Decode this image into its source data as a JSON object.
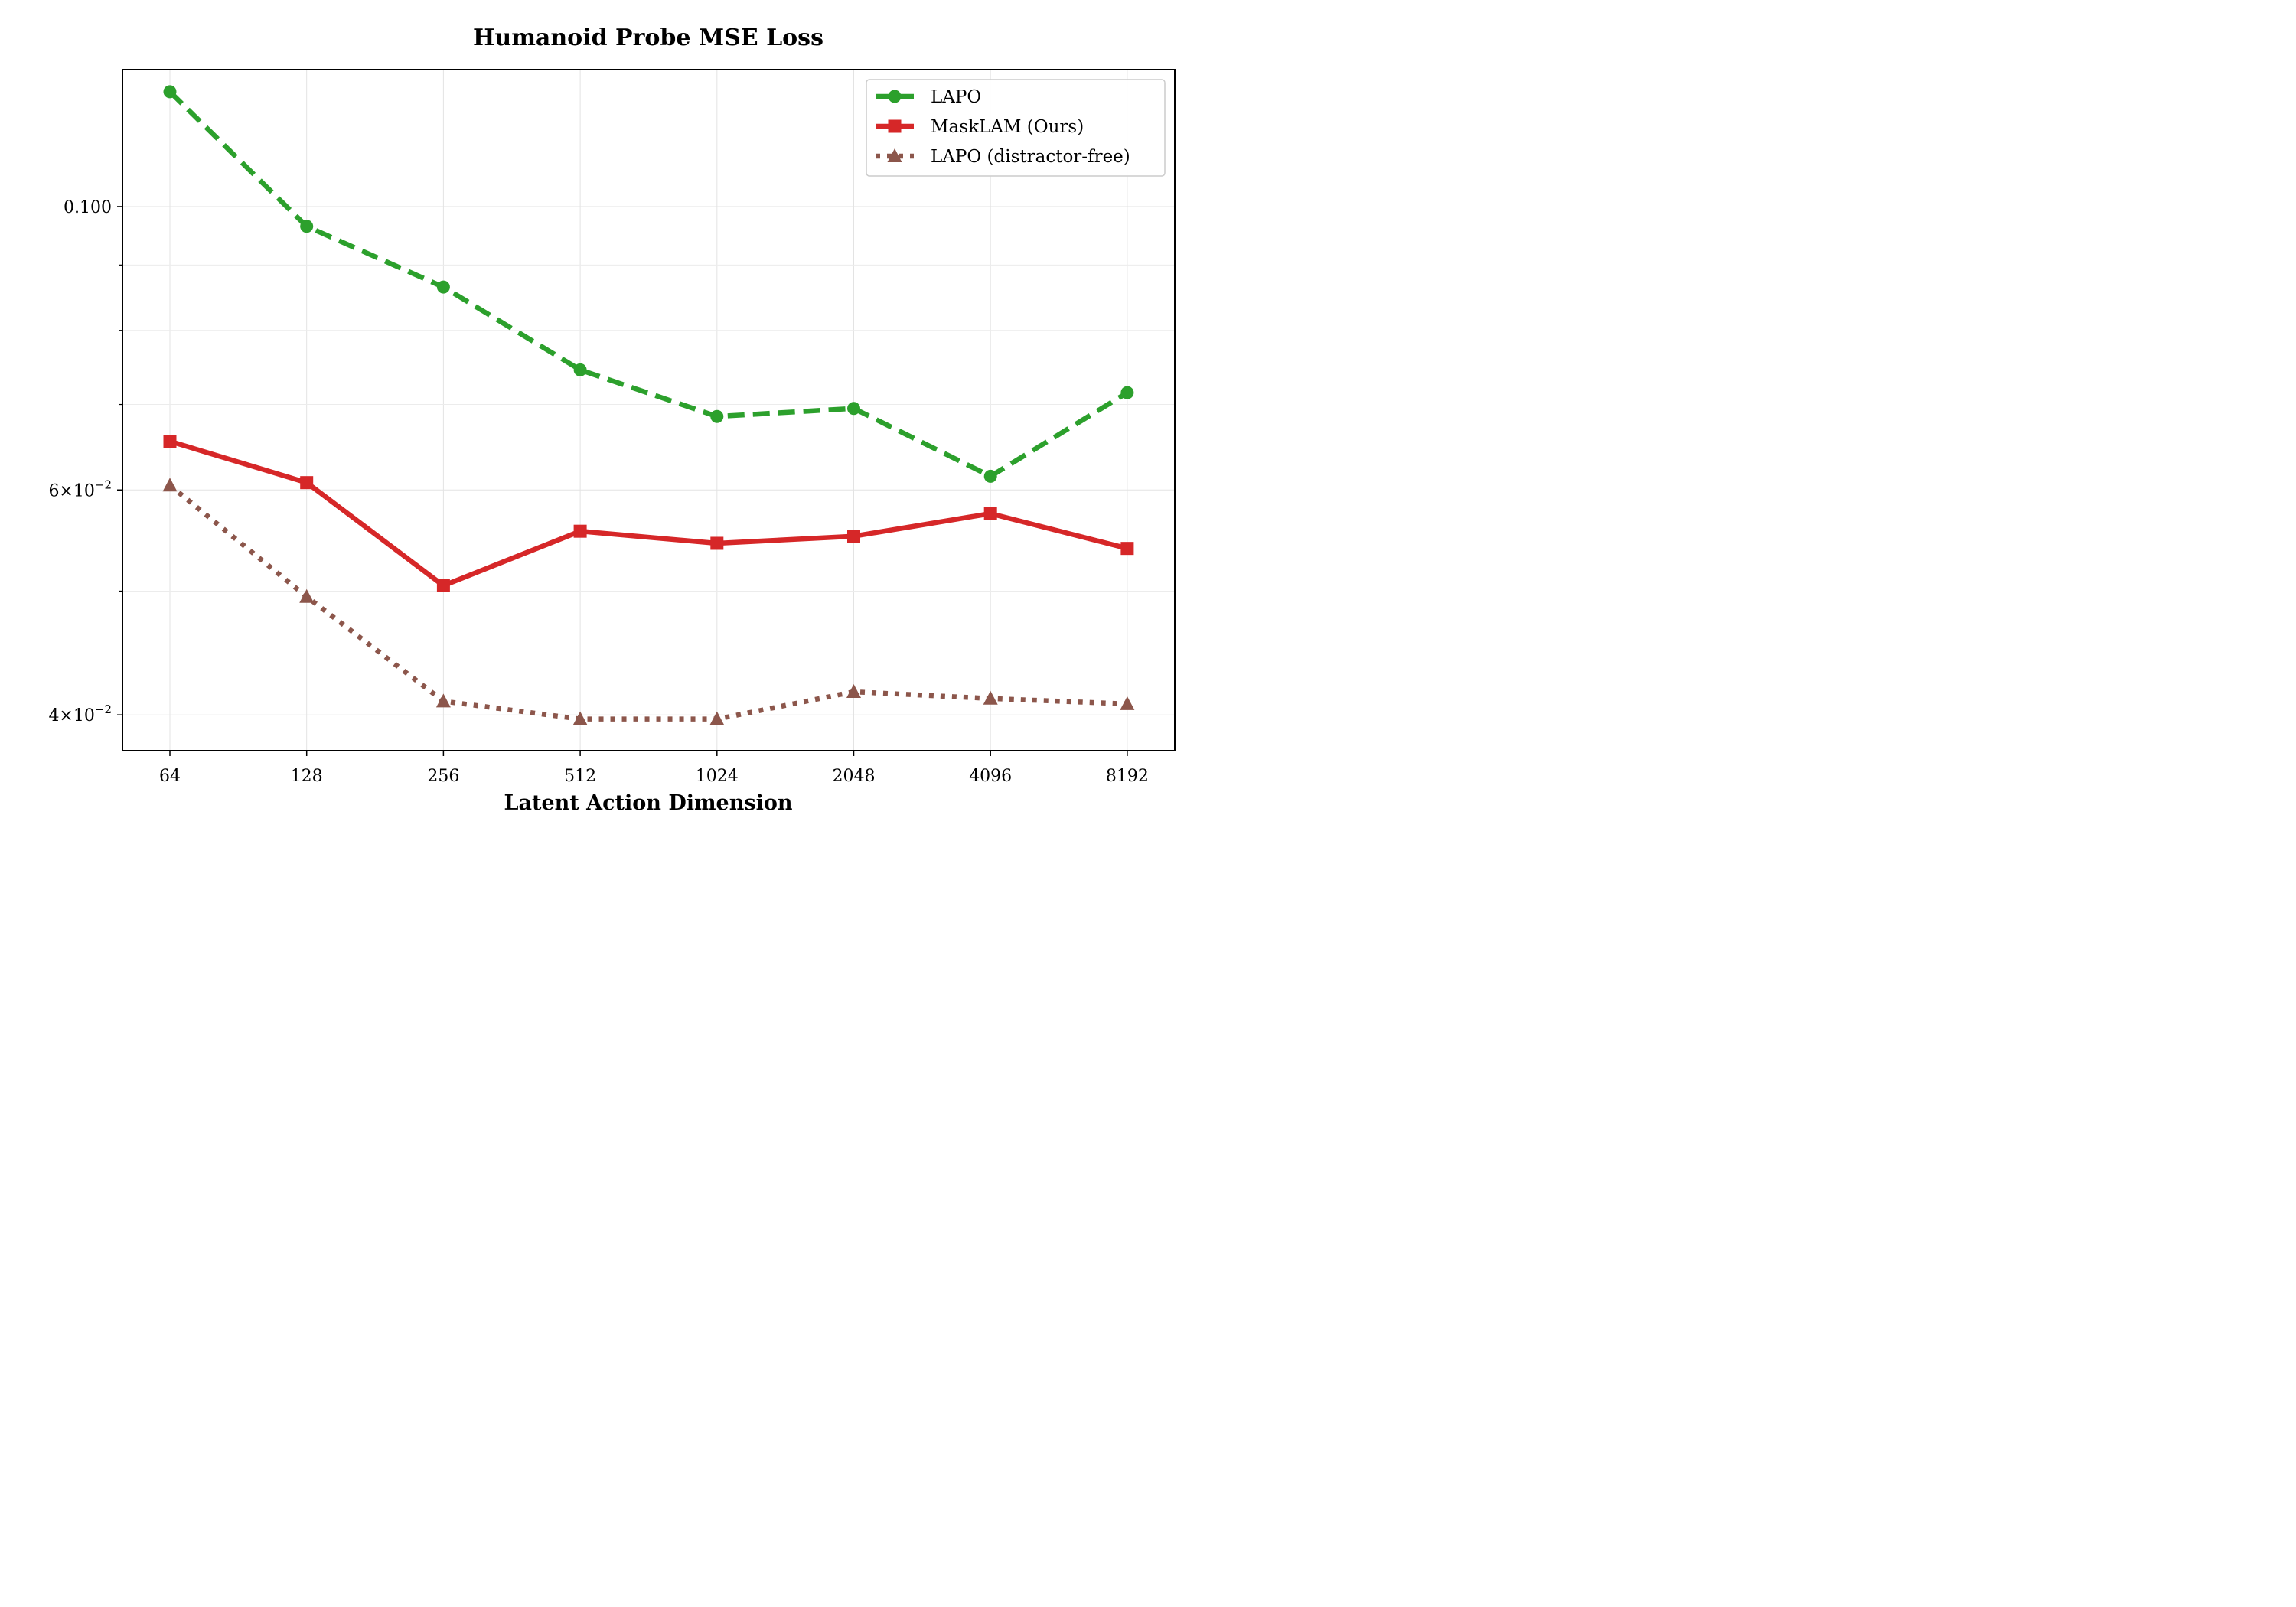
{
  "chart_data": {
    "type": "line",
    "title": "Humanoid Probe MSE Loss",
    "xlabel": "Latent Action Dimension",
    "ylabel": "",
    "y_scale": "log",
    "ylim": [
      0.0375,
      0.128
    ],
    "categories": [
      "64",
      "128",
      "256",
      "512",
      "1024",
      "2048",
      "4096",
      "8192"
    ],
    "y_ticks": [
      {
        "value": 0.1,
        "label": "0.100",
        "kind": "plain"
      },
      {
        "value": 0.06,
        "mantissa": "6",
        "exponent": "−2",
        "kind": "sci"
      },
      {
        "value": 0.04,
        "mantissa": "4",
        "exponent": "−2",
        "kind": "sci"
      }
    ],
    "y_minor_ticks": [
      0.05,
      0.07,
      0.08,
      0.09
    ],
    "grid": true,
    "legend_position": "upper-right",
    "series": [
      {
        "name": "LAPO",
        "color": "#2ca02c",
        "line_style": "dashed",
        "marker": "circle",
        "values": [
          0.123,
          0.0965,
          0.0865,
          0.0745,
          0.0685,
          0.0695,
          0.0615,
          0.0715
        ]
      },
      {
        "name": "MaskLAM (Ours)",
        "color": "#d62728",
        "line_style": "solid",
        "marker": "square",
        "values": [
          0.0655,
          0.0608,
          0.0505,
          0.0557,
          0.0545,
          0.0552,
          0.0575,
          0.054
        ]
      },
      {
        "name": "LAPO (distractor-free)",
        "color": "#8c564b",
        "line_style": "dotted",
        "marker": "triangle",
        "values": [
          0.0605,
          0.0495,
          0.041,
          0.0397,
          0.0397,
          0.0417,
          0.0412,
          0.0408
        ]
      }
    ]
  }
}
